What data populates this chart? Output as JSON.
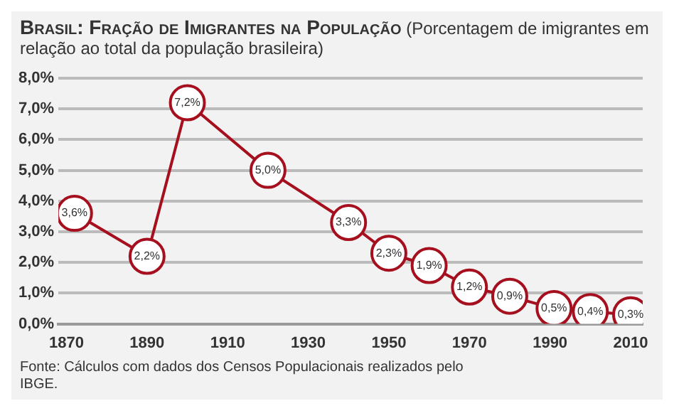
{
  "chart_data": {
    "type": "line",
    "title": "Brasil: Fração de Imigrantes na População",
    "subtitle": "(Porcentagem de imigrantes em relação ao total da população brasileira)",
    "x": [
      1872,
      1890,
      1900,
      1920,
      1940,
      1950,
      1960,
      1970,
      1980,
      1991,
      2000,
      2010
    ],
    "series": [
      {
        "color": "#a50f1e",
        "values": [
          3.6,
          2.2,
          7.2,
          5.0,
          3.3,
          2.3,
          1.9,
          1.2,
          0.9,
          0.5,
          0.4,
          0.3
        ],
        "value_labels": [
          "3,6%",
          "2,2%",
          "7,2%",
          "5,0%",
          "3,3%",
          "2,3%",
          "1,9%",
          "1,2%",
          "0,9%",
          "0,5%",
          "0,4%",
          "0,3%"
        ]
      }
    ],
    "xlim": [
      1868,
      2013
    ],
    "xticks": [
      1870,
      1890,
      1910,
      1930,
      1950,
      1970,
      1990,
      2010
    ],
    "ylim": [
      0,
      8
    ],
    "yticks": [
      {
        "value": 0,
        "label": "0,0%"
      },
      {
        "value": 1,
        "label": "1,0%"
      },
      {
        "value": 2,
        "label": "2,0%"
      },
      {
        "value": 3,
        "label": "3,0%"
      },
      {
        "value": 4,
        "label": "4,0%"
      },
      {
        "value": 5,
        "label": "5,0%"
      },
      {
        "value": 6,
        "label": "6,0%"
      },
      {
        "value": 7,
        "label": "7,0%"
      },
      {
        "value": 8,
        "label": "8,0%"
      }
    ],
    "grid": "y",
    "legend": false,
    "marker": "circle",
    "line_style": "solid",
    "annotations": [
      "Fonte: Cálculos com dados dos Censos Populacionais realizados pelo IBGE."
    ]
  }
}
